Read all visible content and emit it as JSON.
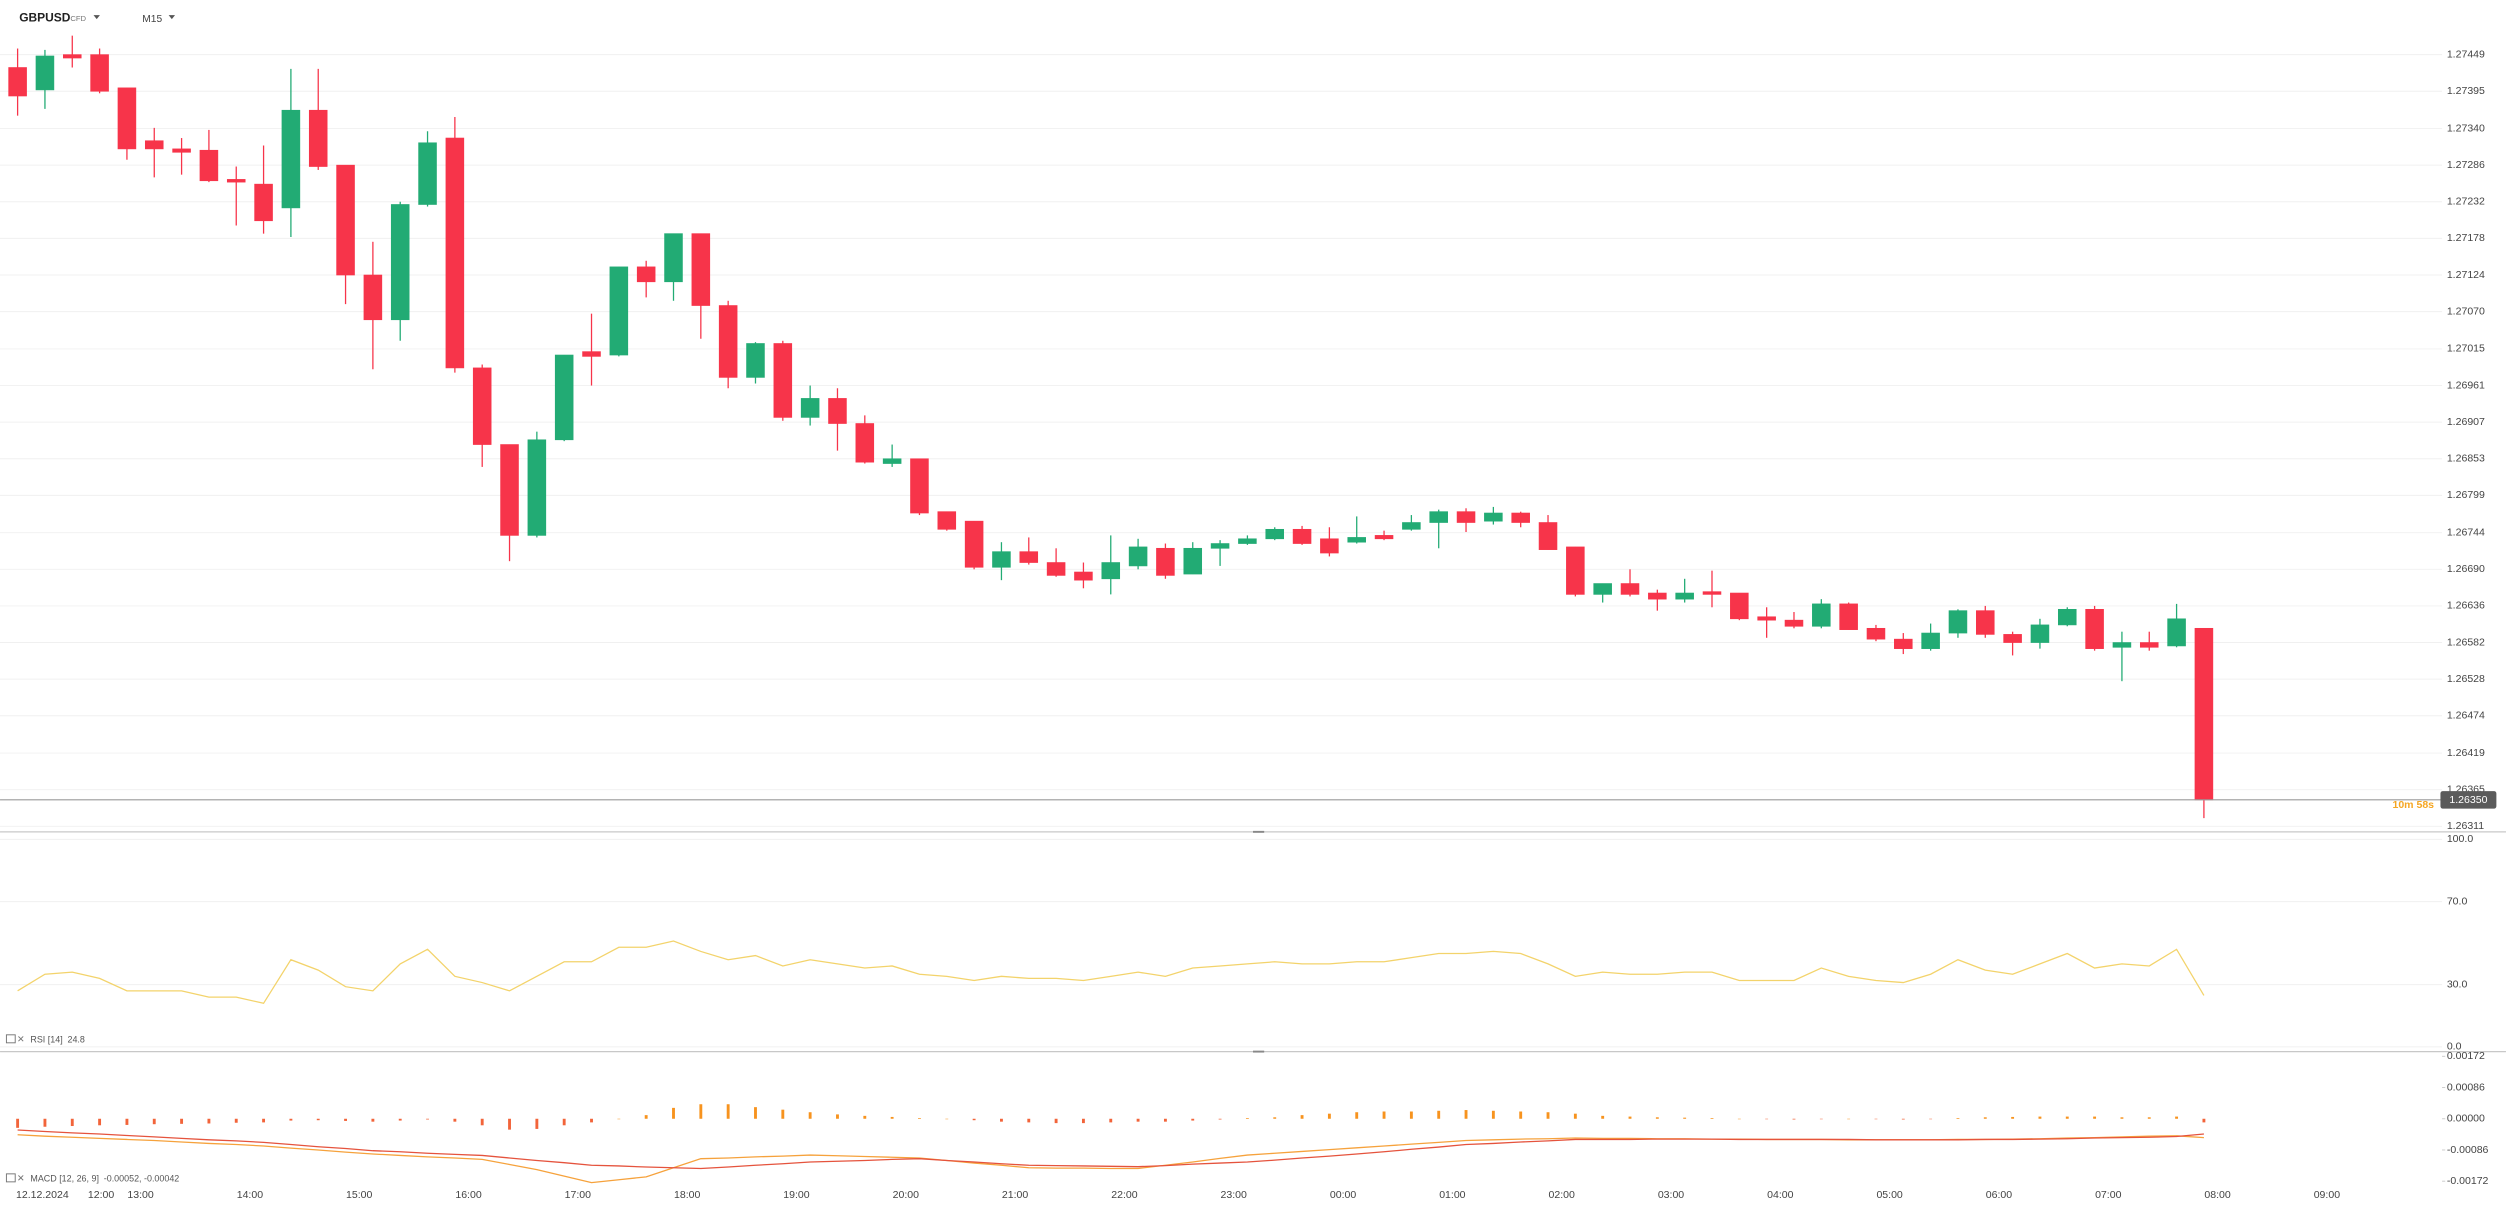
{
  "chart_data": [
    {
      "type": "candlestick",
      "symbol": "GBPUSD",
      "badge": "CFD",
      "timeframe": "M15",
      "up_color": "#22ab74",
      "down_color": "#f7344a",
      "open": [
        1.2743,
        1.27397,
        1.27449,
        1.27449,
        1.274,
        1.27322,
        1.2731,
        1.27308,
        1.27265,
        1.27258,
        1.27223,
        1.27367,
        1.27286,
        1.27124,
        1.27058,
        1.27228,
        1.27326,
        1.26987,
        1.26874,
        1.2674,
        1.26881,
        1.27011,
        1.27006,
        1.27136,
        1.27114,
        1.27185,
        1.27079,
        1.26973,
        1.27023,
        1.26914,
        1.26942,
        1.26905,
        1.26846,
        1.26853,
        1.26775,
        1.26761,
        1.26693,
        1.26716,
        1.267,
        1.26686,
        1.26676,
        1.26695,
        1.26721,
        1.26683,
        1.26721,
        1.26728,
        1.26735,
        1.26749,
        1.26735,
        1.2673,
        1.2674,
        1.26749,
        1.26759,
        1.26775,
        1.26761,
        1.26773,
        1.26759,
        1.26723,
        1.26653,
        1.26669,
        1.26655,
        1.26646,
        1.26657,
        1.26655,
        1.2662,
        1.26615,
        1.26606,
        1.26639,
        1.26603,
        1.26587,
        1.26573,
        1.26596,
        1.26629,
        1.26594,
        1.26582,
        1.26608,
        1.26631,
        1.26575,
        1.26582,
        1.26577,
        1.26603,
        null,
        null,
        null,
        null,
        null
      ],
      "high": [
        1.27458,
        1.27456,
        1.27477,
        1.27458,
        1.274,
        1.27341,
        1.27326,
        1.27338,
        1.27284,
        1.27315,
        1.27428,
        1.27428,
        1.27286,
        1.27173,
        1.27232,
        1.27336,
        1.27357,
        1.26992,
        1.26874,
        1.26893,
        1.27006,
        1.27067,
        1.27136,
        1.27145,
        1.27185,
        1.27185,
        1.27086,
        1.27025,
        1.27027,
        1.26961,
        1.26957,
        1.26917,
        1.26874,
        1.26853,
        1.26775,
        1.26761,
        1.2673,
        1.26737,
        1.26721,
        1.267,
        1.2674,
        1.26735,
        1.26728,
        1.2673,
        1.26733,
        1.2674,
        1.26752,
        1.26754,
        1.26752,
        1.26768,
        1.26747,
        1.2677,
        1.26778,
        1.2678,
        1.26782,
        1.26775,
        1.2677,
        1.26723,
        1.26669,
        1.2669,
        1.2666,
        1.26676,
        1.26688,
        1.26655,
        1.26634,
        1.26627,
        1.26646,
        1.26641,
        1.26608,
        1.26596,
        1.2661,
        1.26631,
        1.26636,
        1.26598,
        1.26617,
        1.26634,
        1.26636,
        1.26598,
        1.26598,
        1.26639,
        1.26603,
        null,
        null,
        null,
        null,
        null
      ],
      "low": [
        1.27359,
        1.27369,
        1.2743,
        1.27392,
        1.27294,
        1.27268,
        1.27272,
        1.27261,
        1.27197,
        1.27185,
        1.2718,
        1.27279,
        1.27081,
        1.26985,
        1.27027,
        1.27225,
        1.2698,
        1.26841,
        1.26702,
        1.26737,
        1.26879,
        1.26961,
        1.27004,
        1.27091,
        1.27086,
        1.2703,
        1.26957,
        1.26964,
        1.26909,
        1.26902,
        1.26865,
        1.26846,
        1.26841,
        1.2677,
        1.26747,
        1.2669,
        1.26674,
        1.26697,
        1.26679,
        1.26662,
        1.26653,
        1.2669,
        1.26676,
        1.26683,
        1.26695,
        1.26726,
        1.26733,
        1.26726,
        1.26709,
        1.26728,
        1.26733,
        1.26747,
        1.26721,
        1.26745,
        1.26756,
        1.26752,
        1.26719,
        1.2665,
        1.26641,
        1.2665,
        1.26629,
        1.26641,
        1.26634,
        1.26615,
        1.26589,
        1.26603,
        1.26603,
        1.26601,
        1.26584,
        1.26565,
        1.2657,
        1.26589,
        1.26589,
        1.26563,
        1.26573,
        1.26606,
        1.2657,
        1.26525,
        1.2657,
        1.26575,
        1.26323,
        null,
        null,
        null,
        null,
        null
      ],
      "close": [
        1.27388,
        1.27447,
        1.27444,
        1.27395,
        1.2731,
        1.2731,
        1.27305,
        1.27263,
        1.27261,
        1.27204,
        1.27367,
        1.27284,
        1.27124,
        1.27058,
        1.27228,
        1.27319,
        1.26987,
        1.26874,
        1.2674,
        1.26881,
        1.27006,
        1.27004,
        1.27136,
        1.27114,
        1.27185,
        1.27079,
        1.26973,
        1.27023,
        1.26914,
        1.26942,
        1.26905,
        1.26848,
        1.26853,
        1.26773,
        1.26749,
        1.26693,
        1.26716,
        1.267,
        1.26681,
        1.26674,
        1.267,
        1.26723,
        1.26681,
        1.26721,
        1.26728,
        1.26735,
        1.26749,
        1.26728,
        1.26714,
        1.26737,
        1.26735,
        1.26759,
        1.26775,
        1.26759,
        1.26773,
        1.26759,
        1.26719,
        1.26653,
        1.26669,
        1.26653,
        1.26646,
        1.26655,
        1.26653,
        1.26617,
        1.26615,
        1.26606,
        1.26639,
        1.26601,
        1.26587,
        1.26573,
        1.26596,
        1.26629,
        1.26594,
        1.26582,
        1.26608,
        1.26631,
        1.26573,
        1.26582,
        1.26575,
        1.26617,
        1.2635,
        null,
        null,
        null,
        null,
        null
      ],
      "ylim": [
        1.26304,
        1.27506
      ],
      "yticks": [
        1.27449,
        1.27395,
        {
          "value": 1.2734,
          "label": "1.27340"
        },
        1.27286,
        1.27232,
        1.27178,
        1.27124,
        {
          "value": 1.2707,
          "label": "1.27070"
        },
        1.27015,
        1.26961,
        1.26907,
        1.26853,
        1.26799,
        1.26744,
        {
          "value": 1.2669,
          "label": "1.26690"
        },
        1.26636,
        1.26582,
        1.26528,
        1.26474,
        1.26419,
        1.26365,
        1.26311
      ],
      "grid": true,
      "price_line": {
        "value": 1.2635,
        "label": "1.26350"
      },
      "countdown": "10m 58s"
    },
    {
      "type": "line",
      "indicator_label": "RSI [14]",
      "indicator_values": "24.8",
      "series": [
        {
          "color": "#f3d36b",
          "values": [
            27,
            35,
            36,
            33,
            27,
            27,
            27,
            24,
            24,
            21,
            42,
            37,
            29,
            27,
            40,
            47,
            34,
            31,
            27,
            34,
            41,
            41,
            48,
            48,
            51,
            46,
            42,
            44,
            39,
            42,
            40,
            38,
            39,
            35,
            34,
            32,
            34,
            33,
            33,
            32,
            34,
            36,
            34,
            38,
            39,
            40,
            41,
            40,
            40,
            41,
            41,
            43,
            45,
            45,
            46,
            45,
            40,
            34,
            36,
            35,
            35,
            36,
            36,
            32,
            32,
            32,
            38,
            34,
            32,
            31,
            35,
            42,
            37,
            35,
            40,
            45,
            38,
            40,
            39,
            47,
            24.8,
            null,
            null,
            null,
            null,
            null
          ]
        }
      ],
      "ylim": [
        -1.5,
        104
      ],
      "yticks": [
        {
          "value": 100,
          "label": "100.0"
        },
        {
          "value": 70,
          "label": "70.0"
        },
        {
          "value": 30,
          "label": "30.0"
        },
        {
          "value": 0,
          "label": "0.0"
        }
      ],
      "grid": true
    },
    {
      "type": "macd",
      "indicator_label": "MACD [12, 26, 9]",
      "indicator_values": "-0.00052, -0.00042",
      "date": "12.12.2024",
      "categories": [
        null,
        "12:00",
        null,
        null,
        null,
        "13:00",
        null,
        null,
        null,
        "14:00",
        null,
        null,
        null,
        "15:00",
        null,
        null,
        null,
        "16:00",
        null,
        null,
        null,
        "17:00",
        null,
        null,
        null,
        "18:00",
        null,
        null,
        null,
        "19:00",
        null,
        null,
        null,
        "20:00",
        null,
        null,
        null,
        "21:00",
        null,
        null,
        null,
        "22:00",
        null,
        null,
        null,
        "23:00",
        null,
        null,
        null,
        "00:00",
        null,
        null,
        null,
        "01:00",
        null,
        null,
        null,
        "02:00",
        null,
        null,
        null,
        "03:00",
        null,
        null,
        null,
        "04:00",
        null,
        null,
        null,
        "05:00",
        null,
        null,
        null,
        "06:00",
        null,
        null,
        null,
        "07:00",
        null,
        null,
        null,
        "08:00",
        null,
        null,
        null,
        "09:00"
      ],
      "series": [
        {
          "kind": "bar",
          "color": "#f7931e",
          "negative_color": "#f2643a",
          "values": [
            -0.00025,
            -0.00022,
            -0.0002,
            -0.00018,
            -0.00017,
            -0.00015,
            -0.00014,
            -0.00013,
            -0.00011,
            -0.0001,
            -5e-05,
            -4e-05,
            -6e-05,
            -8e-05,
            -5e-05,
            -2e-05,
            -8e-05,
            -0.00018,
            -0.0003,
            -0.00028,
            -0.00018,
            -0.0001,
            0,
            0.0001,
            0.0003,
            0.0004,
            0.0004,
            0.00032,
            0.00025,
            0.00018,
            0.00012,
            8e-05,
            5e-05,
            2e-05,
            0,
            -4e-05,
            -8e-05,
            -0.0001,
            -0.00012,
            -0.00012,
            -0.0001,
            -8e-05,
            -8e-05,
            -5e-05,
            -2e-05,
            2e-05,
            4e-05,
            0.0001,
            0.00014,
            0.00018,
            0.0002,
            0.0002,
            0.00022,
            0.00024,
            0.00022,
            0.0002,
            0.00018,
            0.00014,
            8e-05,
            6e-05,
            4e-05,
            3e-05,
            2e-05,
            0,
            -1e-05,
            -2e-05,
            -1e-05,
            0,
            -1e-05,
            -2e-05,
            -1e-05,
            2e-05,
            4e-05,
            5e-05,
            6e-05,
            6e-05,
            6e-05,
            4e-05,
            4e-05,
            6e-05,
            -0.0001,
            null,
            null,
            null,
            null,
            null
          ]
        },
        {
          "kind": "line",
          "color": "#f6a23c",
          "values": [
            -0.00044,
            -0.00048,
            -0.00051,
            -0.00054,
            -0.00057,
            -0.0006,
            -0.00064,
            -0.00068,
            -0.00071,
            -0.00075,
            -0.00081,
            -0.00086,
            -0.00092,
            -0.00097,
            -0.00101,
            -0.00105,
            -0.00108,
            -0.00112,
            -0.00126,
            -0.0014,
            -0.00158,
            -0.00176,
            -0.00168,
            -0.0016,
            -0.00135,
            -0.0011,
            -0.00108,
            -0.00105,
            -0.00103,
            -0.001,
            -0.00102,
            -0.00104,
            -0.00106,
            -0.00108,
            -0.00115,
            -0.00122,
            -0.00128,
            -0.00135,
            -0.00136,
            -0.00136,
            -0.00137,
            -0.00137,
            -0.00128,
            -0.00119,
            -0.00109,
            -0.001,
            -0.00095,
            -0.0009,
            -0.00085,
            -0.0008,
            -0.00075,
            -0.0007,
            -0.00065,
            -0.0006,
            -0.00058,
            -0.00056,
            -0.00055,
            -0.00053,
            -0.00054,
            -0.00054,
            -0.00055,
            -0.00055,
            -0.00056,
            -0.00056,
            -0.00057,
            -0.00057,
            -0.00057,
            -0.00058,
            -0.00058,
            -0.00058,
            -0.00058,
            -0.00057,
            -0.00057,
            -0.00056,
            -0.00055,
            -0.00053,
            -0.00052,
            -0.0005,
            -0.00048,
            -0.00047,
            -0.00052,
            null,
            null,
            null,
            null,
            null
          ]
        },
        {
          "kind": "line",
          "color": "#e5533d",
          "values": [
            -0.00031,
            -0.00035,
            -0.00039,
            -0.00042,
            -0.00046,
            -0.0005,
            -0.00054,
            -0.00058,
            -0.00061,
            -0.00065,
            -0.00071,
            -0.00077,
            -0.00082,
            -0.00088,
            -0.00091,
            -0.00095,
            -0.00098,
            -0.00101,
            -0.00108,
            -0.00115,
            -0.00121,
            -0.00128,
            -0.0013,
            -0.00133,
            -0.00135,
            -0.00137,
            -0.00133,
            -0.00128,
            -0.00124,
            -0.00119,
            -0.00117,
            -0.00115,
            -0.00112,
            -0.0011,
            -0.00115,
            -0.00119,
            -0.00124,
            -0.00128,
            -0.00129,
            -0.0013,
            -0.00131,
            -0.00132,
            -0.00129,
            -0.00125,
            -0.00122,
            -0.00119,
            -0.00114,
            -0.00108,
            -0.00103,
            -0.00097,
            -0.00091,
            -0.00084,
            -0.00078,
            -0.00071,
            -0.00068,
            -0.00064,
            -0.00061,
            -0.00057,
            -0.00057,
            -0.00057,
            -0.00056,
            -0.00056,
            -0.00056,
            -0.00057,
            -0.00057,
            -0.00057,
            -0.00057,
            -0.00057,
            -0.00058,
            -0.00058,
            -0.00058,
            -0.00058,
            -0.00057,
            -0.00057,
            -0.00056,
            -0.00055,
            -0.00053,
            -0.00052,
            -0.00051,
            -0.00049,
            -0.00042,
            null,
            null,
            null,
            null,
            null
          ]
        }
      ],
      "ylim": [
        -0.00198,
        0.00185
      ],
      "yticks": [
        0.00172,
        0.00086,
        {
          "value": 0,
          "label": "0.00000"
        },
        -0.00086,
        -0.00172
      ],
      "grid": false
    }
  ]
}
